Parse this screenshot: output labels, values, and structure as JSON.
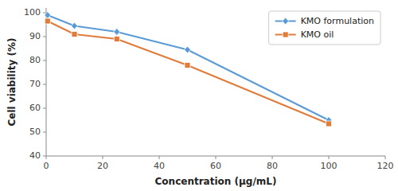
{
  "chart_data": {
    "type": "line",
    "x": [
      0.5,
      10,
      25,
      50,
      100
    ],
    "series": [
      {
        "name": "KMO formulation",
        "color": "#5B9BD5",
        "marker": "diamond",
        "values": [
          99.0,
          94.5,
          92.0,
          84.5,
          55.0
        ]
      },
      {
        "name": "KMO oil",
        "color": "#E07B39",
        "marker": "square",
        "values": [
          96.5,
          91.0,
          89.0,
          78.0,
          53.5
        ]
      }
    ],
    "xlabel": "Concentration (μg/mL)",
    "ylabel": "Cell viability (%)",
    "xlim": [
      0,
      120
    ],
    "ylim": [
      40,
      102
    ],
    "xticks": [
      0,
      20,
      40,
      60,
      80,
      100,
      120
    ],
    "yticks": [
      40,
      50,
      60,
      70,
      80,
      90,
      100
    ],
    "legend": "upper right"
  }
}
